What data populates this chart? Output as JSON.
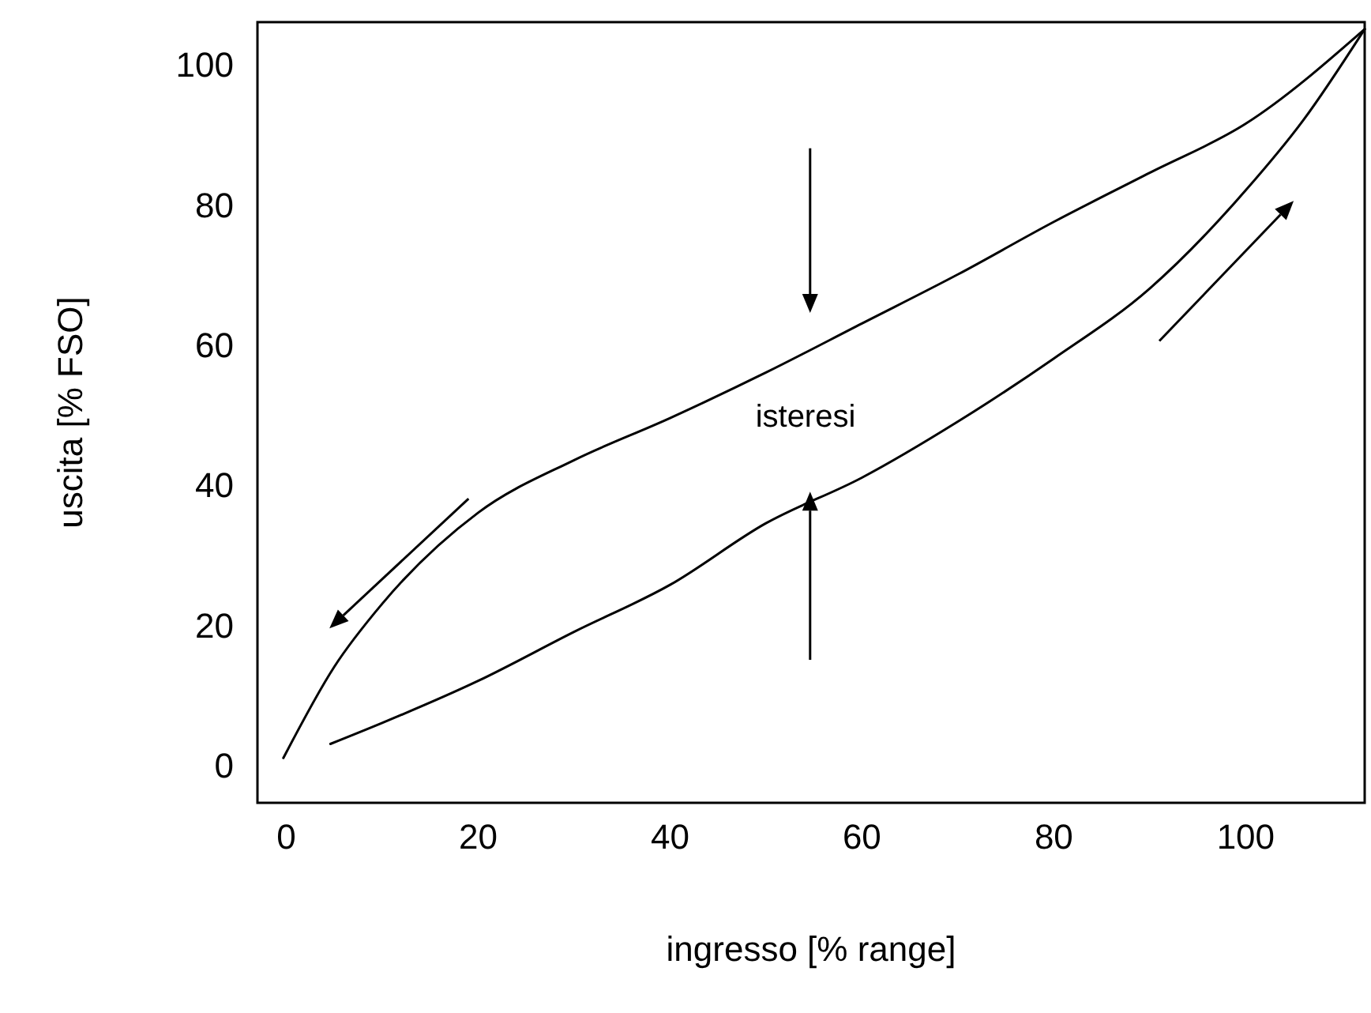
{
  "chart_data": {
    "type": "line",
    "xlabel": "ingresso [% range]",
    "ylabel": "uscita [% FSO]",
    "xlim": [
      -3,
      112.4
    ],
    "ylim": [
      -5.4,
      106
    ],
    "xticks": [
      0,
      20,
      40,
      60,
      80,
      100
    ],
    "yticks": [
      0,
      20,
      40,
      60,
      80,
      100
    ],
    "grid": false,
    "line_style": "solid",
    "series": [
      {
        "color": "#000000",
        "x": [
          -0.3,
          5,
          10,
          20,
          30,
          40,
          50,
          60,
          70,
          80,
          90,
          100,
          112.4
        ],
        "values": [
          1,
          14,
          23,
          36,
          43.5,
          49.5,
          56,
          63,
          70,
          77.5,
          84.5,
          91.5,
          105
        ]
      },
      {
        "color": "#000000",
        "x": [
          4.6,
          10,
          20,
          30,
          40,
          50,
          60,
          70,
          80,
          90,
          100,
          106,
          112.4
        ],
        "values": [
          3,
          6,
          12,
          19,
          25.7,
          34.5,
          41,
          49,
          58,
          68,
          82,
          92,
          105
        ]
      }
    ],
    "annotations": [
      "isteresi"
    ]
  }
}
